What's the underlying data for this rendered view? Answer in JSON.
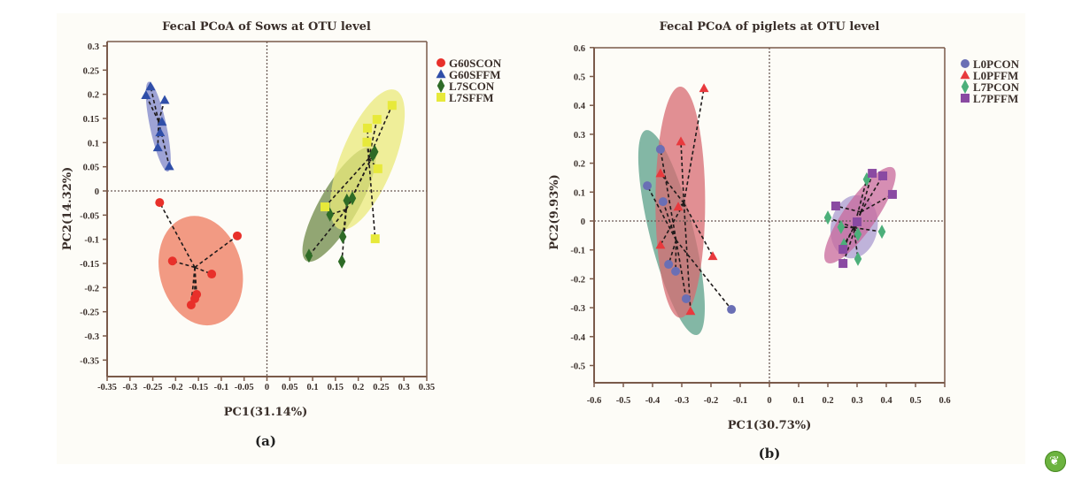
{
  "chart_data": [
    {
      "type": "scatter",
      "panel_label": "(a)",
      "title": "Fecal PCoA of Sows at OTU level",
      "xlabel": "PC1(31.14%)",
      "ylabel": "PC2(14.32%)",
      "xlim": [
        -0.35,
        0.35
      ],
      "ylim": [
        -0.38,
        0.3
      ],
      "xticks": [
        -0.35,
        -0.3,
        -0.25,
        -0.2,
        -0.15,
        -0.1,
        -0.05,
        0,
        0.05,
        0.1,
        0.15,
        0.2,
        0.25,
        0.3,
        0.35
      ],
      "xtick_labels": [
        "-0.35",
        "-0.3",
        "-0.25",
        "-0.2",
        "-0.15",
        "-0.1",
        "-0.05",
        "0",
        "0.05",
        "0.1",
        "0.15",
        "0.2",
        "0.25",
        "0.3",
        "0.35"
      ],
      "yticks": [
        0.3,
        0.25,
        0.2,
        0.15,
        0.1,
        0.05,
        0,
        -0.05,
        -0.1,
        -0.15,
        -0.2,
        -0.25,
        -0.3,
        -0.35
      ],
      "ytick_labels": [
        "0.3",
        "0.25",
        "0.2",
        "0.15",
        "0.1",
        "0.05",
        "0",
        "-0.05",
        "-0.1",
        "-0.15",
        "-0.2",
        "-0.25",
        "-0.3",
        "-0.35"
      ],
      "grid": false,
      "reference_lines": {
        "x": 0,
        "y": 0,
        "style": "dotted"
      },
      "legend_position": "right",
      "series": [
        {
          "name": "G60SCON",
          "marker": "circle",
          "color": "#e8302a",
          "ellipse_color": "#ee7a5c",
          "ellipse": {
            "cx": -0.145,
            "cy": -0.165,
            "rx": 0.09,
            "ry": 0.115,
            "angle_deg": -15
          },
          "points": [
            [
              -0.235,
              -0.024
            ],
            [
              -0.065,
              -0.093
            ],
            [
              -0.207,
              -0.145
            ],
            [
              -0.121,
              -0.172
            ],
            [
              -0.154,
              -0.214
            ],
            [
              -0.158,
              -0.223
            ],
            [
              -0.166,
              -0.236
            ]
          ]
        },
        {
          "name": "G60SFFM",
          "marker": "triangle",
          "color": "#2f4ea8",
          "ellipse_color": "#7d86c9",
          "ellipse": {
            "cx": -0.238,
            "cy": 0.133,
            "rx": 0.018,
            "ry": 0.095,
            "angle_deg": -12
          },
          "points": [
            [
              -0.255,
              0.216
            ],
            [
              -0.265,
              0.198
            ],
            [
              -0.224,
              0.188
            ],
            [
              -0.23,
              0.143
            ],
            [
              -0.234,
              0.121
            ],
            [
              -0.239,
              0.09
            ],
            [
              -0.214,
              0.051
            ]
          ]
        },
        {
          "name": "L7SCON",
          "marker": "diamond",
          "color": "#2e6b26",
          "ellipse_color": "#6d8a47",
          "ellipse": {
            "cx": 0.158,
            "cy": -0.028,
            "rx": 0.042,
            "ry": 0.135,
            "angle_deg": 30
          },
          "points": [
            [
              0.092,
              -0.134
            ],
            [
              0.138,
              -0.049
            ],
            [
              0.166,
              -0.095
            ],
            [
              0.164,
              -0.146
            ],
            [
              0.175,
              -0.02
            ],
            [
              0.187,
              -0.015
            ],
            [
              0.232,
              0.075
            ],
            [
              0.236,
              0.081
            ]
          ]
        },
        {
          "name": "L7SFFM",
          "marker": "square",
          "color": "#e7e93a",
          "ellipse_color": "#e9ea7a",
          "ellipse": {
            "cx": 0.22,
            "cy": 0.065,
            "rx": 0.058,
            "ry": 0.155,
            "angle_deg": 22
          },
          "points": [
            [
              0.127,
              -0.033
            ],
            [
              0.274,
              0.177
            ],
            [
              0.241,
              0.148
            ],
            [
              0.22,
              0.13
            ],
            [
              0.219,
              0.101
            ],
            [
              0.243,
              0.046
            ],
            [
              0.237,
              -0.099
            ]
          ]
        }
      ]
    },
    {
      "type": "scatter",
      "panel_label": "(b)",
      "title": "Fecal PCoA  of piglets at OTU level",
      "xlabel": "PC1(30.73%)",
      "ylabel": "PC2(9.93%)",
      "xlim": [
        -0.6,
        0.6
      ],
      "ylim": [
        -0.56,
        0.6
      ],
      "xticks": [
        -0.6,
        -0.5,
        -0.4,
        -0.3,
        -0.2,
        -0.1,
        0,
        0.1,
        0.2,
        0.3,
        0.4,
        0.5,
        0.6
      ],
      "xtick_labels": [
        "-0.6",
        "-0.5",
        "-0.4",
        "-0.3",
        "-0.2",
        "-0.1",
        "0",
        "0.1",
        "0.2",
        "0.3",
        "0.4",
        "0.5",
        "0.6"
      ],
      "yticks": [
        0.6,
        0.5,
        0.4,
        0.3,
        0.2,
        0.1,
        0,
        -0.1,
        -0.2,
        -0.3,
        -0.4,
        -0.5
      ],
      "ytick_labels": [
        "0.6",
        "0.5",
        "0.4",
        "0.3",
        "0.2",
        "0.1",
        "0",
        "-0.1",
        "-0.2",
        "-0.3",
        "-0.4",
        "-0.5"
      ],
      "grid": false,
      "reference_lines": {
        "x": 0,
        "y": 0,
        "style": "dotted"
      },
      "legend_position": "right",
      "series": [
        {
          "name": "L0PCON",
          "marker": "circle",
          "color": "#6a6fb5",
          "ellipse_color": "#5aa08a",
          "ellipse": {
            "cx": -0.335,
            "cy": -0.04,
            "rx": 0.075,
            "ry": 0.365,
            "angle_deg": -14
          },
          "points": [
            [
              -0.373,
              0.248
            ],
            [
              -0.418,
              0.122
            ],
            [
              -0.364,
              0.067
            ],
            [
              -0.345,
              -0.15
            ],
            [
              -0.321,
              -0.174
            ],
            [
              -0.285,
              -0.269
            ],
            [
              -0.13,
              -0.306
            ]
          ]
        },
        {
          "name": "L0PFFM",
          "marker": "triangle",
          "color": "#e8393d",
          "ellipse_color": "#d76b72",
          "ellipse": {
            "cx": -0.305,
            "cy": 0.065,
            "rx": 0.085,
            "ry": 0.4,
            "angle_deg": 0
          },
          "points": [
            [
              -0.224,
              0.459
            ],
            [
              -0.303,
              0.275
            ],
            [
              -0.373,
              0.165
            ],
            [
              -0.312,
              0.049
            ],
            [
              -0.373,
              -0.083
            ],
            [
              -0.194,
              -0.122
            ],
            [
              -0.27,
              -0.312
            ]
          ]
        },
        {
          "name": "L7PCON",
          "marker": "diamond",
          "color": "#4caf7a",
          "ellipse_color": "#a99bd0",
          "ellipse": {
            "cx": 0.29,
            "cy": -0.02,
            "rx": 0.08,
            "ry": 0.11,
            "angle_deg": 10
          },
          "points": [
            [
              0.2,
              0.012
            ],
            [
              0.245,
              -0.021
            ],
            [
              0.333,
              0.144
            ],
            [
              0.303,
              -0.046
            ],
            [
              0.385,
              -0.037
            ],
            [
              0.303,
              -0.131
            ],
            [
              0.255,
              -0.083
            ]
          ]
        },
        {
          "name": "L7PFFM",
          "marker": "square",
          "color": "#8a4aa2",
          "ellipse_color": "#c86a9c",
          "ellipse": {
            "cx": 0.31,
            "cy": 0.02,
            "rx": 0.055,
            "ry": 0.2,
            "angle_deg": 35
          },
          "points": [
            [
              0.227,
              0.052
            ],
            [
              0.352,
              0.165
            ],
            [
              0.388,
              0.156
            ],
            [
              0.421,
              0.092
            ],
            [
              0.3,
              -0.003
            ],
            [
              0.252,
              -0.147
            ],
            [
              0.252,
              -0.098
            ]
          ]
        }
      ]
    }
  ],
  "logo": {
    "name": "journal-logo"
  }
}
